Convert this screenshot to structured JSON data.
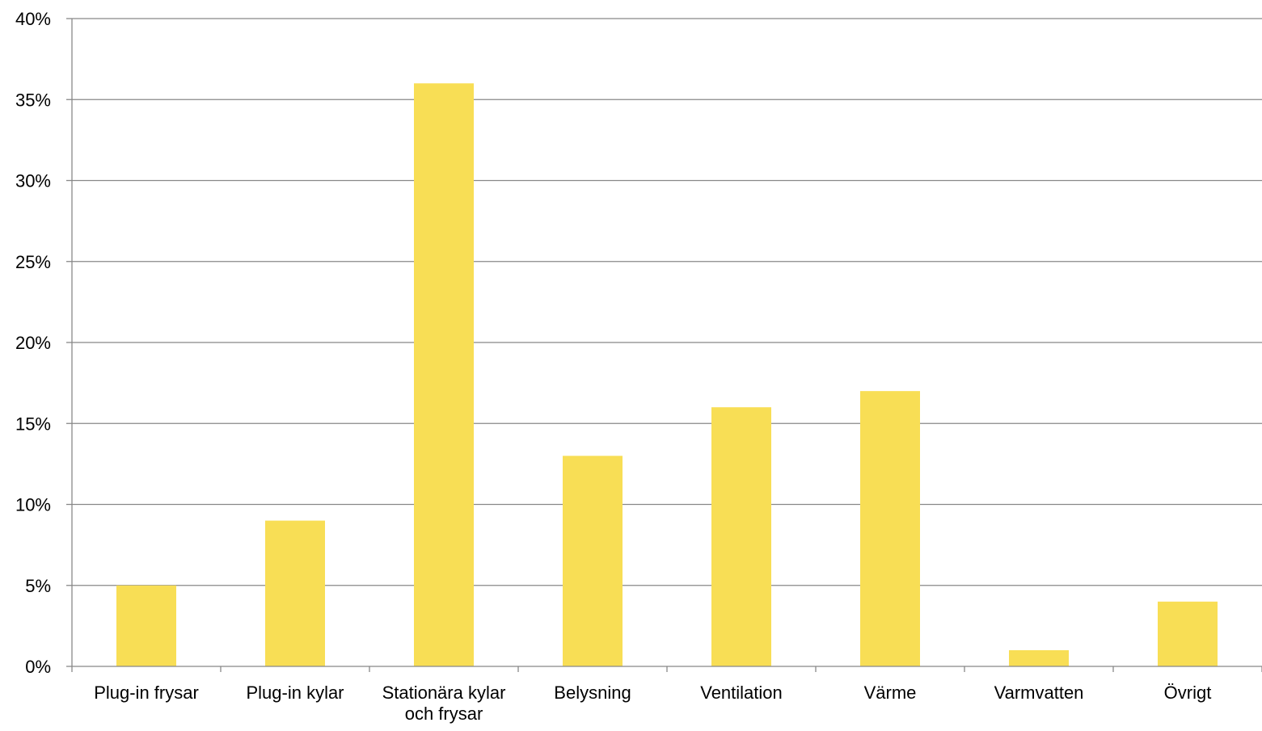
{
  "chart_data": {
    "type": "bar",
    "categories": [
      [
        "Plug-in frysar"
      ],
      [
        "Plug-in kylar"
      ],
      [
        "Stationära kylar",
        "och frysar"
      ],
      [
        "Belysning"
      ],
      [
        "Ventilation"
      ],
      [
        "Värme"
      ],
      [
        "Varmvatten"
      ],
      [
        "Övrigt"
      ]
    ],
    "values": [
      5,
      9,
      36,
      13,
      16,
      17,
      1,
      4
    ],
    "value_unit": "%",
    "ylim": [
      0,
      40
    ],
    "yticks": [
      "0%",
      "5%",
      "10%",
      "15%",
      "20%",
      "25%",
      "30%",
      "35%",
      "40%"
    ],
    "ytick_values": [
      0,
      5,
      10,
      15,
      20,
      25,
      30,
      35,
      40
    ],
    "title": "",
    "xlabel": "",
    "ylabel": "",
    "grid": true,
    "legend": "none",
    "colors": {
      "bar": "#F8DE55",
      "grid": "#888888",
      "axis": "#888888",
      "text": "#000000"
    }
  }
}
